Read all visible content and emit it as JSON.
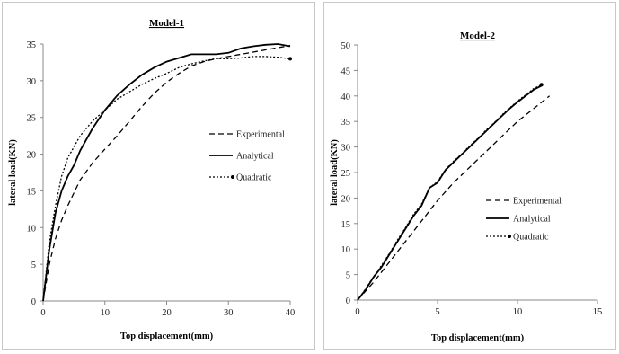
{
  "chart_data": [
    {
      "type": "line",
      "title": "Model-1",
      "xlabel": "Top displacement(mm)",
      "ylabel": "lateral load(KN)",
      "xlim": [
        0,
        40
      ],
      "ylim": [
        0,
        35
      ],
      "xticks": [
        0,
        10,
        20,
        30,
        40
      ],
      "yticks": [
        0,
        5,
        10,
        15,
        20,
        25,
        30,
        35
      ],
      "grid": false,
      "legend_position": "right",
      "series": [
        {
          "name": "Experimental",
          "style": "dashed",
          "x": [
            0,
            1,
            2,
            3,
            4,
            6,
            8,
            10,
            12,
            14,
            16,
            18,
            20,
            22,
            24,
            26,
            28,
            30,
            32,
            34,
            36,
            38,
            40
          ],
          "y": [
            0,
            5,
            8.5,
            11,
            13,
            16.5,
            18.8,
            20.7,
            22.5,
            24.5,
            26.5,
            28.3,
            29.8,
            31,
            32,
            32.6,
            33,
            33.3,
            33.6,
            33.9,
            34.2,
            34.5,
            34.8
          ]
        },
        {
          "name": "Analytical",
          "style": "solid",
          "x": [
            0,
            1,
            2,
            3,
            4,
            5,
            6,
            8,
            10,
            12,
            14,
            16,
            18,
            20,
            22,
            24,
            26,
            28,
            30,
            32,
            34,
            36,
            38,
            40
          ],
          "y": [
            0,
            7,
            12,
            15,
            17,
            18.5,
            20.5,
            23.5,
            26,
            28,
            29.5,
            30.8,
            31.8,
            32.6,
            33.1,
            33.6,
            33.6,
            33.6,
            33.8,
            34.4,
            34.7,
            34.9,
            35.0,
            34.7
          ]
        },
        {
          "name": "Quadratic",
          "style": "dotted",
          "x": [
            0,
            1,
            2,
            3,
            4,
            6,
            8,
            10,
            12,
            14,
            16,
            18,
            20,
            22,
            24,
            26,
            28,
            30,
            32,
            34,
            36,
            38,
            40
          ],
          "y": [
            0,
            8,
            13,
            17,
            19.5,
            22.5,
            24.5,
            26,
            27.5,
            28.5,
            29.5,
            30.3,
            31,
            31.8,
            32.3,
            32.7,
            33,
            33,
            33.1,
            33.3,
            33.3,
            33.2,
            33.0
          ]
        }
      ]
    },
    {
      "type": "line",
      "title": "Model-2",
      "xlabel": "Top displacement(mm)",
      "ylabel": "lateral load(KN)",
      "xlim": [
        0,
        15
      ],
      "ylim": [
        0,
        50
      ],
      "xticks": [
        0,
        5,
        10,
        15
      ],
      "yticks": [
        0,
        5,
        10,
        15,
        20,
        25,
        30,
        35,
        40,
        45,
        50
      ],
      "grid": false,
      "legend_position": "center-right",
      "series": [
        {
          "name": "Experimental",
          "style": "dashed",
          "x": [
            0,
            1,
            2,
            3,
            4,
            5,
            6,
            7,
            8,
            9,
            10,
            11,
            12
          ],
          "y": [
            0,
            3.5,
            7.5,
            11.5,
            15.5,
            19.5,
            23,
            26,
            29,
            32,
            35,
            37.5,
            40
          ]
        },
        {
          "name": "Analytical",
          "style": "solid",
          "x": [
            0,
            0.5,
            1,
            1.5,
            2,
            2.5,
            3,
            3.5,
            4,
            4.5,
            5,
            5.5,
            6,
            6.5,
            7,
            7.5,
            8,
            8.5,
            9,
            9.5,
            10,
            10.5,
            11,
            11.5
          ],
          "y": [
            0,
            2,
            4.5,
            6.5,
            9,
            11.5,
            14,
            16.5,
            18.5,
            22,
            23,
            25.5,
            27,
            28.5,
            30,
            31.5,
            33,
            34.5,
            36,
            37.5,
            38.8,
            40,
            41.2,
            42
          ]
        },
        {
          "name": "Quadratic",
          "style": "dotted",
          "x": [
            0,
            0.5,
            1,
            1.5,
            2,
            2.5,
            3,
            3.5,
            4,
            4.5,
            5,
            5.5,
            6,
            6.5,
            7,
            7.5,
            8,
            8.5,
            9,
            9.5,
            10,
            10.5,
            11,
            11.5
          ],
          "y": [
            0,
            2.2,
            4.6,
            6.8,
            9.2,
            11.8,
            14.2,
            16.8,
            18.8,
            22,
            23.2,
            25.6,
            27.2,
            28.6,
            30.2,
            31.6,
            33.2,
            34.6,
            36.2,
            37.6,
            39,
            40.2,
            41.4,
            42.2
          ]
        }
      ]
    }
  ]
}
